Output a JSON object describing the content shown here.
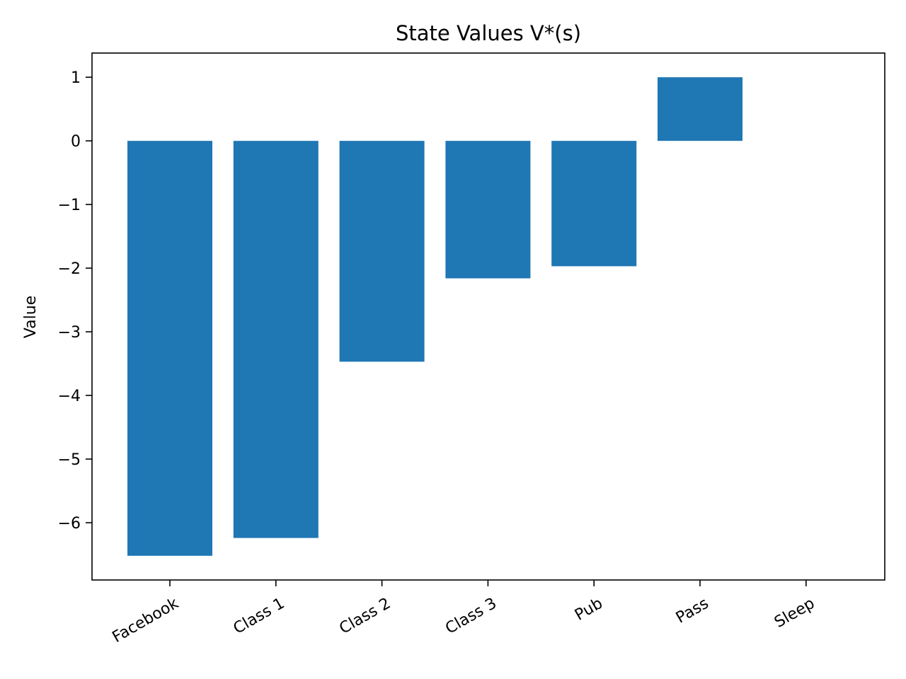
{
  "chart_data": {
    "type": "bar",
    "title": "State Values V*(s)",
    "xlabel": "",
    "ylabel": "Value",
    "categories": [
      "Facebook",
      "Class 1",
      "Class 2",
      "Class 3",
      "Pub",
      "Pass",
      "Sleep"
    ],
    "values": [
      -6.52,
      -6.24,
      -3.47,
      -2.16,
      -1.97,
      1.0,
      0.0
    ],
    "ylim": [
      -6.9,
      1.38
    ],
    "yticks": [
      1,
      0,
      -1,
      -2,
      -3,
      -4,
      -5,
      -6
    ],
    "ytick_labels": [
      "1",
      "0",
      "−1",
      "−2",
      "−3",
      "−4",
      "−5",
      "−6"
    ],
    "bar_color": "#1f77b4",
    "grid": false,
    "legend": "none"
  }
}
